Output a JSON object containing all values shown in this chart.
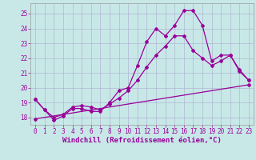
{
  "title": "",
  "xlabel": "Windchill (Refroidissement éolien,°C)",
  "ylabel": "",
  "xlim": [
    -0.5,
    23.5
  ],
  "ylim": [
    17.5,
    25.7
  ],
  "yticks": [
    18,
    19,
    20,
    21,
    22,
    23,
    24,
    25
  ],
  "xticks": [
    0,
    1,
    2,
    3,
    4,
    5,
    6,
    7,
    8,
    9,
    10,
    11,
    12,
    13,
    14,
    15,
    16,
    17,
    18,
    19,
    20,
    21,
    22,
    23
  ],
  "background_color": "#c8e8e8",
  "grid_color": "#aaaacc",
  "line_color": "#990099",
  "line1_x": [
    0,
    1,
    2,
    3,
    4,
    5,
    6,
    7,
    8,
    9,
    10,
    11,
    12,
    13,
    14,
    15,
    16,
    17,
    18,
    19,
    20,
    21,
    22,
    23
  ],
  "line1_y": [
    19.2,
    18.5,
    17.8,
    18.1,
    18.6,
    18.6,
    18.4,
    18.4,
    19.0,
    19.8,
    20.0,
    21.5,
    23.1,
    24.0,
    23.5,
    24.2,
    25.2,
    25.2,
    24.2,
    21.8,
    22.2,
    22.2,
    21.1,
    20.5
  ],
  "line2_x": [
    0,
    1,
    2,
    3,
    4,
    5,
    6,
    7,
    8,
    9,
    10,
    11,
    12,
    13,
    14,
    15,
    16,
    17,
    18,
    19,
    20,
    21,
    22,
    23
  ],
  "line2_y": [
    19.2,
    18.5,
    18.0,
    18.2,
    18.7,
    18.8,
    18.7,
    18.5,
    18.9,
    19.3,
    19.8,
    20.5,
    21.4,
    22.2,
    22.8,
    23.5,
    23.5,
    22.5,
    22.0,
    21.5,
    21.8,
    22.2,
    21.2,
    20.5
  ],
  "line3_x": [
    0,
    23
  ],
  "line3_y": [
    17.9,
    20.2
  ],
  "marker": "D",
  "markersize": 2,
  "linewidth": 0.9,
  "xlabel_fontsize": 6.5,
  "tick_fontsize": 5.5,
  "tick_color": "#990099",
  "xlabel_color": "#990099"
}
